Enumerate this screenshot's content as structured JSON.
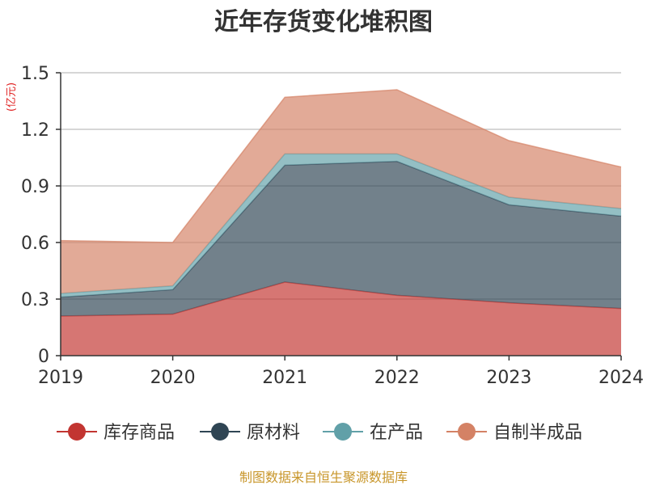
{
  "chart_data": {
    "type": "area",
    "stacked": true,
    "title": "近年存货变化堆积图",
    "unit": "(亿元)",
    "categories": [
      "2019",
      "2020",
      "2021",
      "2022",
      "2023",
      "2024"
    ],
    "ylim": [
      0,
      1.5
    ],
    "yticks": [
      "0",
      "0.3",
      "0.6",
      "0.9",
      "1.2",
      "1.5"
    ],
    "grid": true,
    "legend_position": "bottom",
    "series": [
      {
        "name": "库存商品",
        "color": "#c23531",
        "values": [
          0.21,
          0.22,
          0.39,
          0.32,
          0.28,
          0.25
        ]
      },
      {
        "name": "原材料",
        "color": "#2f4554",
        "values": [
          0.1,
          0.13,
          0.62,
          0.71,
          0.52,
          0.49
        ]
      },
      {
        "name": "在产品",
        "color": "#61a0a8",
        "values": [
          0.02,
          0.02,
          0.06,
          0.04,
          0.04,
          0.04
        ]
      },
      {
        "name": "自制半成品",
        "color": "#d48265",
        "values": [
          0.28,
          0.23,
          0.3,
          0.34,
          0.3,
          0.22
        ]
      }
    ]
  },
  "source_text": "制图数据来自恒生聚源数据库"
}
